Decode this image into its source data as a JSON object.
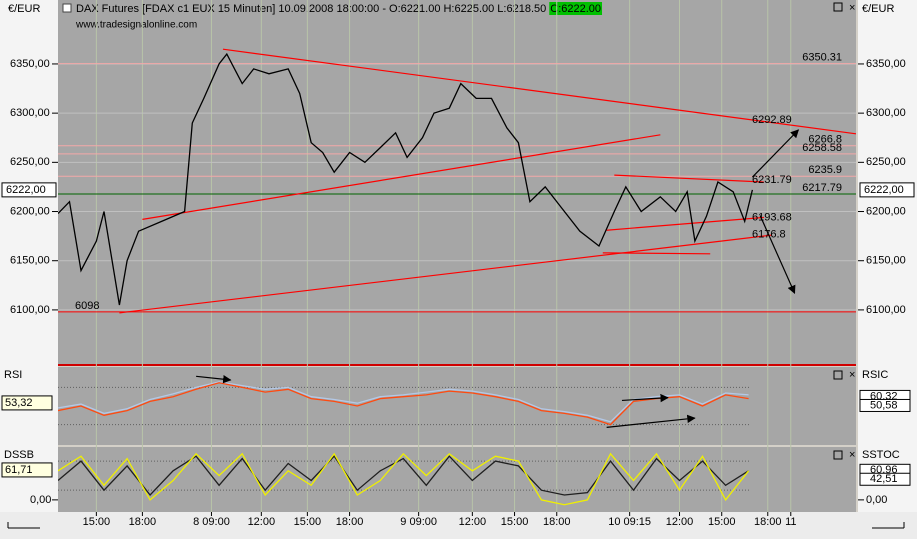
{
  "chart_data": [
    {
      "type": "line",
      "title": "DAX Futures [FDAX c1 EUX  15 Minuten] 10.09.2008 18:00:00 - O:6221.00 H:6225.00 L:6218.50",
      "close_label": "C:6222.00",
      "subtitle": "www.tradesignalonline.com",
      "y_axis_label": "€/EUR",
      "last_price": {
        "value": 6222,
        "label": "6222,00"
      },
      "x": [
        0,
        3,
        6,
        10,
        12,
        16,
        18,
        21,
        27,
        33,
        35,
        38,
        42,
        44,
        48,
        51,
        55,
        60,
        63,
        66,
        69,
        72,
        76,
        80,
        84,
        88,
        91,
        95,
        98,
        102,
        105,
        109,
        113,
        117,
        120,
        123,
        127,
        131,
        136,
        141,
        145,
        148,
        152,
        157,
        161,
        164,
        166,
        169,
        172,
        176,
        179,
        181
      ],
      "values": [
        6198,
        6210,
        6140,
        6170,
        6200,
        6105,
        6150,
        6180,
        6190,
        6200,
        6290,
        6315,
        6350,
        6360,
        6330,
        6345,
        6340,
        6345,
        6320,
        6270,
        6260,
        6240,
        6260,
        6250,
        6265,
        6280,
        6255,
        6275,
        6300,
        6305,
        6330,
        6315,
        6315,
        6285,
        6270,
        6210,
        6225,
        6205,
        6180,
        6165,
        6200,
        6225,
        6200,
        6215,
        6200,
        6220,
        6170,
        6195,
        6230,
        6220,
        6190,
        6222
      ],
      "color": "#000000",
      "xlim": [
        0,
        208
      ],
      "ylim": [
        6044,
        6415
      ],
      "xticks": [
        {
          "value": 10,
          "label": "15:00"
        },
        {
          "value": 22,
          "label": "18:00"
        },
        {
          "value": 40,
          "label": "8 09:00"
        },
        {
          "value": 53,
          "label": "12:00"
        },
        {
          "value": 65,
          "label": "15:00"
        },
        {
          "value": 76,
          "label": "18:00"
        },
        {
          "value": 94,
          "label": "9 09:00"
        },
        {
          "value": 108,
          "label": "12:00"
        },
        {
          "value": 119,
          "label": "15:00"
        },
        {
          "value": 130,
          "label": "18:00"
        },
        {
          "value": 149,
          "label": "10 09:15"
        },
        {
          "value": 162,
          "label": "12:00"
        },
        {
          "value": 173,
          "label": "15:00"
        },
        {
          "value": 185,
          "label": "18:00"
        },
        {
          "value": 191,
          "label": "11"
        }
      ],
      "yticks": [
        {
          "value": 6100,
          "label": "6100,00"
        },
        {
          "value": 6150,
          "label": "6150,00"
        },
        {
          "value": 6200,
          "label": "6200,00"
        },
        {
          "value": 6250,
          "label": "6250,00"
        },
        {
          "value": 6300,
          "label": "6300,00"
        },
        {
          "value": 6350,
          "label": "6350,00"
        }
      ],
      "grid": true,
      "levels": [
        {
          "value": 6350.31,
          "label": "6350.31",
          "color": "#f4a8a8"
        },
        {
          "value": 6266.8,
          "label": "6266.8",
          "color": "#f4a8a8"
        },
        {
          "value": 6258.58,
          "label": "6258.58",
          "color": "#f4a8a8"
        },
        {
          "value": 6235.9,
          "label": "6235.9",
          "color": "#f4a8a8"
        },
        {
          "value": 6217.79,
          "label": "6217.79",
          "color": "#006400"
        },
        {
          "value": 6098,
          "label": "6098",
          "color": "#ff0000",
          "align": "left"
        }
      ],
      "annotations": [
        {
          "value": 6292.89,
          "label": "6292.89",
          "color": "#ff0000"
        },
        {
          "value": 6231.79,
          "label": "6231.79",
          "color": "#ff0000"
        },
        {
          "value": 6193.68,
          "label": "6193.68",
          "color": "#ff0000"
        },
        {
          "value": 6176.8,
          "label": "6176.8",
          "color": "#ff0000"
        }
      ],
      "trendlines": [
        {
          "x": [
            43,
            208
          ],
          "y": [
            6365,
            6279
          ],
          "color": "#ff0000"
        },
        {
          "x": [
            22,
            157
          ],
          "y": [
            6192,
            6278
          ],
          "color": "#ff0000"
        },
        {
          "x": [
            16,
            186
          ],
          "y": [
            6097,
            6176
          ],
          "color": "#ff0000"
        },
        {
          "x": [
            145,
            184
          ],
          "y": [
            6237,
            6230
          ],
          "color": "#ff0000"
        },
        {
          "x": [
            143,
            184
          ],
          "y": [
            6181,
            6194
          ],
          "color": "#ff0000"
        },
        {
          "x": [
            142,
            170
          ],
          "y": [
            6158,
            6157
          ],
          "color": "#ff0000"
        }
      ],
      "arrows": [
        {
          "x": [
            181,
            193
          ],
          "y": [
            6235,
            6283
          ],
          "color": "#000000"
        },
        {
          "x": [
            183,
            192
          ],
          "y": [
            6196,
            6117
          ],
          "color": "#000000"
        }
      ]
    },
    {
      "type": "line",
      "label": "RSI",
      "label_right": "RSIC",
      "readouts_left": [
        {
          "value": 53.32,
          "label": "53,32"
        }
      ],
      "readouts_right": [
        {
          "value": 60.32,
          "label": "60,32"
        },
        {
          "value": 50.58,
          "label": "50,58"
        }
      ],
      "x": [
        0,
        6,
        12,
        18,
        24,
        30,
        36,
        42,
        48,
        54,
        60,
        66,
        72,
        78,
        84,
        90,
        96,
        102,
        108,
        114,
        120,
        126,
        132,
        138,
        144,
        150,
        156,
        162,
        168,
        174,
        180
      ],
      "series": [
        {
          "color": "#b4c8e6",
          "values": [
            48,
            52,
            42,
            47,
            57,
            63,
            70,
            76,
            72,
            68,
            70,
            60,
            57,
            53,
            60,
            62,
            65,
            68,
            66,
            62,
            57,
            47,
            44,
            40,
            33,
            57,
            60,
            62,
            52,
            64,
            62
          ]
        },
        {
          "color": "#ff4a10",
          "values": [
            45,
            50,
            40,
            45,
            55,
            60,
            68,
            75,
            70,
            65,
            68,
            58,
            55,
            50,
            58,
            60,
            62,
            66,
            64,
            60,
            55,
            45,
            42,
            38,
            30,
            55,
            58,
            60,
            50,
            62,
            58
          ]
        }
      ],
      "xlim": [
        0,
        208
      ],
      "ylim": [
        8,
        92
      ],
      "levels": [
        30,
        70
      ],
      "arrows": [
        {
          "x": [
            36,
            45
          ],
          "y": [
            82,
            78
          ],
          "color": "#000000"
        },
        {
          "x": [
            147,
            159
          ],
          "y": [
            56,
            59
          ],
          "color": "#000000"
        },
        {
          "x": [
            143,
            166
          ],
          "y": [
            27,
            37
          ],
          "color": "#000000"
        }
      ]
    },
    {
      "type": "line",
      "label": "DSSB",
      "label_right": "SSTOC",
      "readouts_left": [
        {
          "value": 61.71,
          "label": "61,71"
        }
      ],
      "readouts_right": [
        {
          "value": 60.96,
          "label": "60,96"
        },
        {
          "value": 42.51,
          "label": "42,51"
        }
      ],
      "x": [
        0,
        6,
        12,
        18,
        24,
        30,
        36,
        42,
        48,
        54,
        60,
        66,
        72,
        78,
        84,
        90,
        96,
        102,
        108,
        114,
        120,
        126,
        132,
        138,
        144,
        150,
        156,
        162,
        168,
        174,
        180
      ],
      "series": [
        {
          "color": "#202020",
          "values": [
            40,
            80,
            20,
            70,
            10,
            60,
            90,
            30,
            85,
            20,
            75,
            40,
            90,
            20,
            60,
            85,
            30,
            90,
            40,
            80,
            70,
            20,
            10,
            15,
            80,
            20,
            85,
            40,
            80,
            30,
            60
          ]
        },
        {
          "color": "#f0f000",
          "values": [
            60,
            90,
            30,
            85,
            0,
            40,
            95,
            50,
            95,
            10,
            60,
            30,
            95,
            10,
            40,
            95,
            50,
            95,
            60,
            90,
            80,
            0,
            -10,
            0,
            95,
            40,
            95,
            20,
            90,
            0,
            60
          ]
        }
      ],
      "xlim": [
        0,
        208
      ],
      "ylim": [
        -25,
        109
      ],
      "yticks": [
        {
          "value": 0,
          "label": "0,00"
        }
      ],
      "levels": [
        20,
        80
      ]
    }
  ]
}
